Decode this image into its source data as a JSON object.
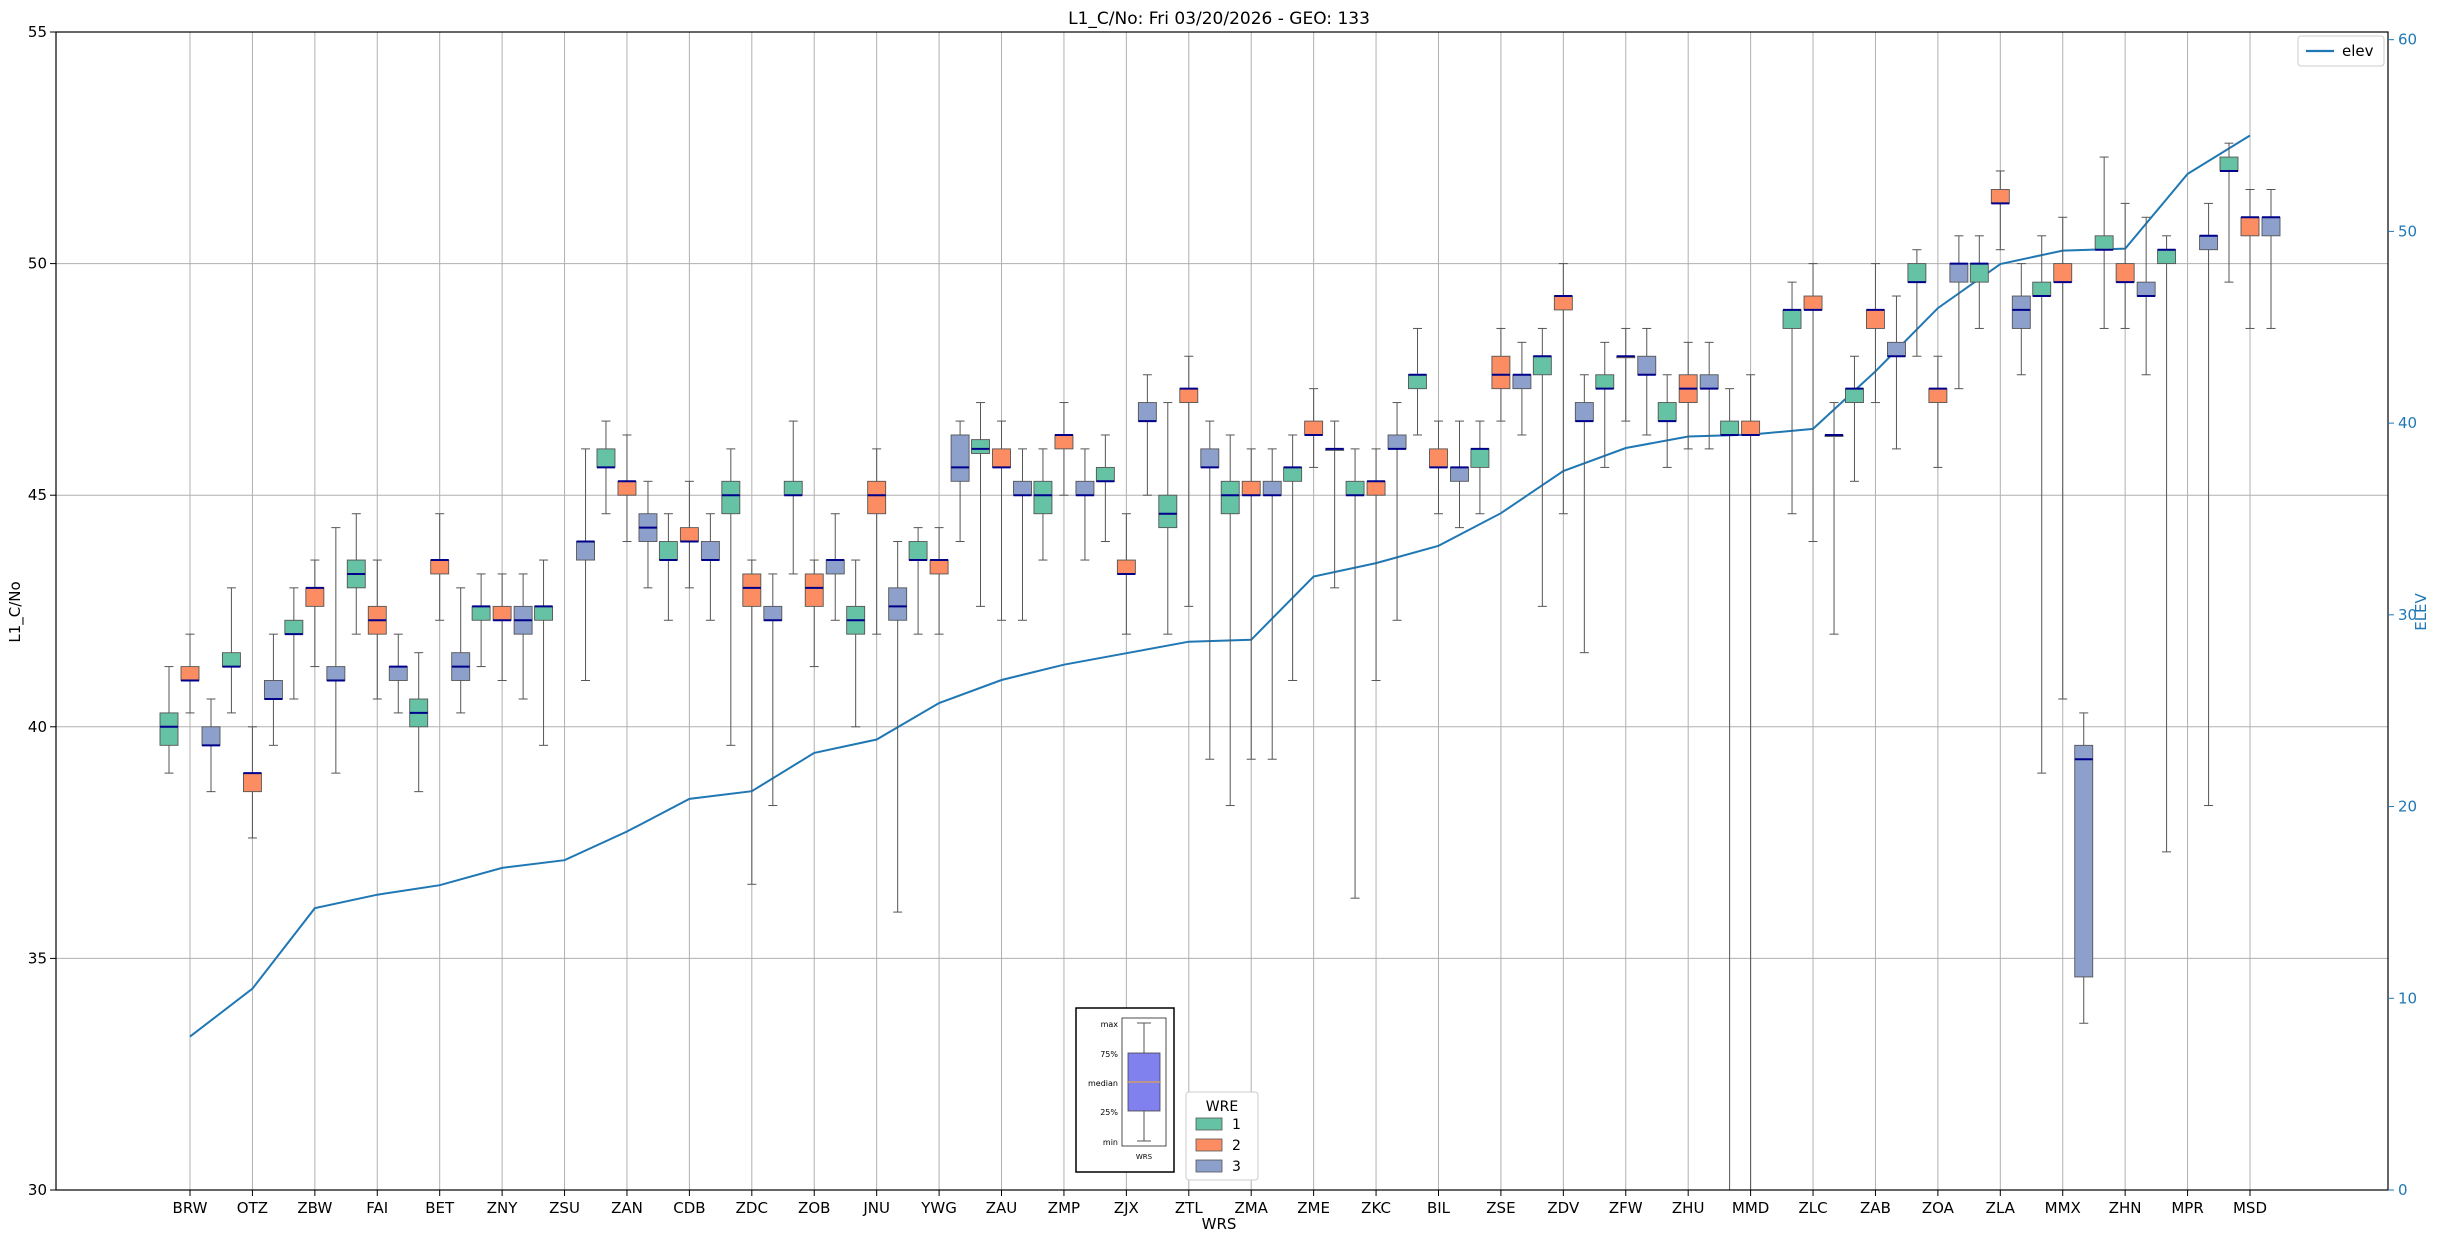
{
  "chart_data": {
    "type": "box",
    "title": "L1_C/No: Fri 03/20/2026 - GEO: 133",
    "xlabel": "WRS",
    "ylabel": "L1_C/No",
    "y2label": "ELEV",
    "ylim": [
      30,
      55
    ],
    "y2lim": [
      0,
      60.4
    ],
    "yticks": [
      30,
      35,
      40,
      45,
      50,
      55
    ],
    "y2ticks": [
      0,
      10,
      20,
      30,
      40,
      50,
      60
    ],
    "grid": true,
    "categories": [
      "BRW",
      "OTZ",
      "ZBW",
      "FAI",
      "BET",
      "ZNY",
      "ZSU",
      "ZAN",
      "CDB",
      "ZDC",
      "ZOB",
      "JNU",
      "YWG",
      "ZAU",
      "ZMP",
      "ZJX",
      "ZTL",
      "ZMA",
      "ZME",
      "ZKC",
      "BIL",
      "ZSE",
      "ZDV",
      "ZFW",
      "ZHU",
      "MMD",
      "ZLC",
      "ZAB",
      "ZOA",
      "ZLA",
      "MMX",
      "ZHN",
      "MPR",
      "MSD"
    ],
    "series_colors": {
      "1": "#66c2a5",
      "2": "#fc8d62",
      "3": "#8da0cb"
    },
    "median_color": "#00008b",
    "line_color": "#1f77b4",
    "legend": {
      "title": "WRE",
      "entries": [
        "1",
        "2",
        "3"
      ],
      "placement": "bottom-center"
    },
    "line_legend": {
      "label": "elev",
      "placement": "top-right"
    },
    "line_series": {
      "name": "elev",
      "values": [
        8.0,
        10.5,
        14.7,
        15.4,
        15.9,
        16.8,
        17.2,
        18.7,
        20.4,
        20.8,
        22.8,
        23.5,
        25.4,
        26.6,
        27.4,
        28.0,
        28.6,
        28.7,
        32.0,
        32.7,
        33.6,
        35.3,
        37.5,
        38.7,
        39.3,
        39.4,
        39.7,
        42.7,
        46.0,
        48.3,
        49.0,
        49.1,
        53.0,
        55.0
      ]
    },
    "boxes": [
      {
        "cat": "BRW",
        "wre": "1",
        "min": 39.0,
        "q1": 39.6,
        "median": 40.0,
        "q3": 40.3,
        "max": 41.3
      },
      {
        "cat": "BRW",
        "wre": "2",
        "min": 40.3,
        "q1": 41.0,
        "median": 41.0,
        "q3": 41.3,
        "max": 42.0
      },
      {
        "cat": "BRW",
        "wre": "3",
        "min": 38.6,
        "q1": 39.6,
        "median": 39.6,
        "q3": 40.0,
        "max": 40.6
      },
      {
        "cat": "OTZ",
        "wre": "1",
        "min": 40.3,
        "q1": 41.3,
        "median": 41.3,
        "q3": 41.6,
        "max": 43.0
      },
      {
        "cat": "OTZ",
        "wre": "2",
        "min": 37.6,
        "q1": 38.6,
        "median": 39.0,
        "q3": 39.0,
        "max": 40.0
      },
      {
        "cat": "OTZ",
        "wre": "3",
        "min": 39.6,
        "q1": 40.6,
        "median": 40.6,
        "q3": 41.0,
        "max": 42.0
      },
      {
        "cat": "ZBW",
        "wre": "1",
        "min": 40.6,
        "q1": 42.0,
        "median": 42.0,
        "q3": 42.3,
        "max": 43.0
      },
      {
        "cat": "ZBW",
        "wre": "2",
        "min": 41.3,
        "q1": 42.6,
        "median": 43.0,
        "q3": 43.0,
        "max": 43.6
      },
      {
        "cat": "ZBW",
        "wre": "3",
        "min": 39.0,
        "q1": 41.0,
        "median": 41.0,
        "q3": 41.3,
        "max": 44.3
      },
      {
        "cat": "FAI",
        "wre": "1",
        "min": 42.0,
        "q1": 43.0,
        "median": 43.3,
        "q3": 43.6,
        "max": 44.6
      },
      {
        "cat": "FAI",
        "wre": "2",
        "min": 40.6,
        "q1": 42.0,
        "median": 42.3,
        "q3": 42.6,
        "max": 43.6
      },
      {
        "cat": "FAI",
        "wre": "3",
        "min": 40.3,
        "q1": 41.0,
        "median": 41.3,
        "q3": 41.3,
        "max": 42.0
      },
      {
        "cat": "BET",
        "wre": "1",
        "min": 38.6,
        "q1": 40.0,
        "median": 40.3,
        "q3": 40.6,
        "max": 41.6
      },
      {
        "cat": "BET",
        "wre": "2",
        "min": 42.3,
        "q1": 43.3,
        "median": 43.6,
        "q3": 43.6,
        "max": 44.6
      },
      {
        "cat": "BET",
        "wre": "3",
        "min": 40.3,
        "q1": 41.0,
        "median": 41.3,
        "q3": 41.6,
        "max": 43.0
      },
      {
        "cat": "ZNY",
        "wre": "1",
        "min": 41.3,
        "q1": 42.3,
        "median": 42.6,
        "q3": 42.6,
        "max": 43.3
      },
      {
        "cat": "ZNY",
        "wre": "2",
        "min": 41.0,
        "q1": 42.3,
        "median": 42.3,
        "q3": 42.6,
        "max": 43.3
      },
      {
        "cat": "ZNY",
        "wre": "3",
        "min": 40.6,
        "q1": 42.0,
        "median": 42.3,
        "q3": 42.6,
        "max": 43.3
      },
      {
        "cat": "ZSU",
        "wre": "1",
        "min": 39.6,
        "q1": 42.3,
        "median": 42.6,
        "q3": 42.6,
        "max": 43.6
      },
      {
        "cat": "ZSU",
        "wre": "3",
        "min": 41.0,
        "q1": 43.6,
        "median": 44.0,
        "q3": 44.0,
        "max": 46.0
      },
      {
        "cat": "ZAN",
        "wre": "1",
        "min": 44.6,
        "q1": 45.6,
        "median": 45.6,
        "q3": 46.0,
        "max": 46.6
      },
      {
        "cat": "ZAN",
        "wre": "2",
        "min": 44.0,
        "q1": 45.0,
        "median": 45.3,
        "q3": 45.3,
        "max": 46.3
      },
      {
        "cat": "ZAN",
        "wre": "3",
        "min": 43.0,
        "q1": 44.0,
        "median": 44.3,
        "q3": 44.6,
        "max": 45.3
      },
      {
        "cat": "CDB",
        "wre": "1",
        "min": 42.3,
        "q1": 43.6,
        "median": 43.6,
        "q3": 44.0,
        "max": 44.6
      },
      {
        "cat": "CDB",
        "wre": "2",
        "min": 43.0,
        "q1": 44.0,
        "median": 44.0,
        "q3": 44.3,
        "max": 45.3
      },
      {
        "cat": "CDB",
        "wre": "3",
        "min": 42.3,
        "q1": 43.6,
        "median": 43.6,
        "q3": 44.0,
        "max": 44.6
      },
      {
        "cat": "ZDC",
        "wre": "1",
        "min": 39.6,
        "q1": 44.6,
        "median": 45.0,
        "q3": 45.3,
        "max": 46.0
      },
      {
        "cat": "ZDC",
        "wre": "2",
        "min": 36.6,
        "q1": 42.6,
        "median": 43.0,
        "q3": 43.3,
        "max": 43.6
      },
      {
        "cat": "ZDC",
        "wre": "3",
        "min": 38.3,
        "q1": 42.3,
        "median": 42.3,
        "q3": 42.6,
        "max": 43.3
      },
      {
        "cat": "ZOB",
        "wre": "1",
        "min": 43.3,
        "q1": 45.0,
        "median": 45.0,
        "q3": 45.3,
        "max": 46.6
      },
      {
        "cat": "ZOB",
        "wre": "2",
        "min": 41.3,
        "q1": 42.6,
        "median": 43.0,
        "q3": 43.3,
        "max": 43.6
      },
      {
        "cat": "ZOB",
        "wre": "3",
        "min": 42.3,
        "q1": 43.3,
        "median": 43.6,
        "q3": 43.6,
        "max": 44.6
      },
      {
        "cat": "JNU",
        "wre": "1",
        "min": 40.0,
        "q1": 42.0,
        "median": 42.3,
        "q3": 42.6,
        "max": 43.6
      },
      {
        "cat": "JNU",
        "wre": "2",
        "min": 42.0,
        "q1": 44.6,
        "median": 45.0,
        "q3": 45.3,
        "max": 46.0
      },
      {
        "cat": "JNU",
        "wre": "3",
        "min": 36.0,
        "q1": 42.3,
        "median": 42.6,
        "q3": 43.0,
        "max": 44.0
      },
      {
        "cat": "YWG",
        "wre": "1",
        "min": 42.0,
        "q1": 43.6,
        "median": 43.6,
        "q3": 44.0,
        "max": 44.3
      },
      {
        "cat": "YWG",
        "wre": "2",
        "min": 42.0,
        "q1": 43.3,
        "median": 43.6,
        "q3": 43.6,
        "max": 44.3
      },
      {
        "cat": "YWG",
        "wre": "3",
        "min": 44.0,
        "q1": 45.3,
        "median": 45.6,
        "q3": 46.3,
        "max": 46.6
      },
      {
        "cat": "ZAU",
        "wre": "1",
        "min": 42.6,
        "q1": 45.9,
        "median": 46.0,
        "q3": 46.2,
        "max": 47.0
      },
      {
        "cat": "ZAU",
        "wre": "2",
        "min": 42.3,
        "q1": 45.6,
        "median": 45.6,
        "q3": 46.0,
        "max": 46.6
      },
      {
        "cat": "ZAU",
        "wre": "3",
        "min": 42.3,
        "q1": 45.0,
        "median": 45.0,
        "q3": 45.3,
        "max": 46.0
      },
      {
        "cat": "ZMP",
        "wre": "1",
        "min": 43.6,
        "q1": 44.6,
        "median": 45.0,
        "q3": 45.3,
        "max": 46.0
      },
      {
        "cat": "ZMP",
        "wre": "2",
        "min": 45.0,
        "q1": 46.0,
        "median": 46.3,
        "q3": 46.3,
        "max": 47.0
      },
      {
        "cat": "ZMP",
        "wre": "3",
        "min": 43.6,
        "q1": 45.0,
        "median": 45.0,
        "q3": 45.3,
        "max": 46.0
      },
      {
        "cat": "ZJX",
        "wre": "1",
        "min": 44.0,
        "q1": 45.3,
        "median": 45.3,
        "q3": 45.6,
        "max": 46.3
      },
      {
        "cat": "ZJX",
        "wre": "2",
        "min": 42.0,
        "q1": 43.3,
        "median": 43.3,
        "q3": 43.6,
        "max": 44.6
      },
      {
        "cat": "ZJX",
        "wre": "3",
        "min": 45.0,
        "q1": 46.6,
        "median": 46.6,
        "q3": 47.0,
        "max": 47.6
      },
      {
        "cat": "ZTL",
        "wre": "1",
        "min": 42.0,
        "q1": 44.3,
        "median": 44.6,
        "q3": 45.0,
        "max": 47.0
      },
      {
        "cat": "ZTL",
        "wre": "2",
        "min": 42.6,
        "q1": 47.0,
        "median": 47.3,
        "q3": 47.3,
        "max": 48.0
      },
      {
        "cat": "ZTL",
        "wre": "3",
        "min": 39.3,
        "q1": 45.6,
        "median": 45.6,
        "q3": 46.0,
        "max": 46.6
      },
      {
        "cat": "ZMA",
        "wre": "1",
        "min": 38.3,
        "q1": 44.6,
        "median": 45.0,
        "q3": 45.3,
        "max": 46.3
      },
      {
        "cat": "ZMA",
        "wre": "2",
        "min": 39.3,
        "q1": 45.0,
        "median": 45.0,
        "q3": 45.3,
        "max": 46.0
      },
      {
        "cat": "ZMA",
        "wre": "3",
        "min": 39.3,
        "q1": 45.0,
        "median": 45.0,
        "q3": 45.3,
        "max": 46.0
      },
      {
        "cat": "ZME",
        "wre": "1",
        "min": 41.0,
        "q1": 45.3,
        "median": 45.6,
        "q3": 45.6,
        "max": 46.3
      },
      {
        "cat": "ZME",
        "wre": "2",
        "min": 45.6,
        "q1": 46.3,
        "median": 46.3,
        "q3": 46.6,
        "max": 47.3
      },
      {
        "cat": "ZME",
        "wre": "3",
        "min": 43.0,
        "q1": 46.0,
        "median": 46.0,
        "q3": 46.0,
        "max": 46.6
      },
      {
        "cat": "ZKC",
        "wre": "1",
        "min": 36.3,
        "q1": 45.0,
        "median": 45.0,
        "q3": 45.3,
        "max": 46.0
      },
      {
        "cat": "ZKC",
        "wre": "2",
        "min": 41.0,
        "q1": 45.0,
        "median": 45.3,
        "q3": 45.3,
        "max": 46.0
      },
      {
        "cat": "ZKC",
        "wre": "3",
        "min": 42.3,
        "q1": 46.0,
        "median": 46.0,
        "q3": 46.3,
        "max": 47.0
      },
      {
        "cat": "BIL",
        "wre": "1",
        "min": 46.3,
        "q1": 47.3,
        "median": 47.6,
        "q3": 47.6,
        "max": 48.6
      },
      {
        "cat": "BIL",
        "wre": "2",
        "min": 44.6,
        "q1": 45.6,
        "median": 45.6,
        "q3": 46.0,
        "max": 46.6
      },
      {
        "cat": "BIL",
        "wre": "3",
        "min": 44.3,
        "q1": 45.3,
        "median": 45.6,
        "q3": 45.6,
        "max": 46.6
      },
      {
        "cat": "ZSE",
        "wre": "1",
        "min": 44.6,
        "q1": 45.6,
        "median": 46.0,
        "q3": 46.0,
        "max": 46.6
      },
      {
        "cat": "ZSE",
        "wre": "2",
        "min": 46.6,
        "q1": 47.3,
        "median": 47.6,
        "q3": 48.0,
        "max": 48.6
      },
      {
        "cat": "ZSE",
        "wre": "3",
        "min": 46.3,
        "q1": 47.3,
        "median": 47.6,
        "q3": 47.6,
        "max": 48.3
      },
      {
        "cat": "ZDV",
        "wre": "1",
        "min": 42.6,
        "q1": 47.6,
        "median": 48.0,
        "q3": 48.0,
        "max": 48.6
      },
      {
        "cat": "ZDV",
        "wre": "2",
        "min": 44.6,
        "q1": 49.0,
        "median": 49.3,
        "q3": 49.3,
        "max": 50.0
      },
      {
        "cat": "ZDV",
        "wre": "3",
        "min": 41.6,
        "q1": 46.6,
        "median": 46.6,
        "q3": 47.0,
        "max": 47.6
      },
      {
        "cat": "ZFW",
        "wre": "1",
        "min": 45.6,
        "q1": 47.3,
        "median": 47.3,
        "q3": 47.6,
        "max": 48.3
      },
      {
        "cat": "ZFW",
        "wre": "2",
        "min": 46.6,
        "q1": 48.0,
        "median": 48.0,
        "q3": 48.0,
        "max": 48.6
      },
      {
        "cat": "ZFW",
        "wre": "3",
        "min": 46.3,
        "q1": 47.6,
        "median": 47.6,
        "q3": 48.0,
        "max": 48.6
      },
      {
        "cat": "ZHU",
        "wre": "1",
        "min": 45.6,
        "q1": 46.6,
        "median": 46.6,
        "q3": 47.0,
        "max": 47.6
      },
      {
        "cat": "ZHU",
        "wre": "2",
        "min": 46.0,
        "q1": 47.0,
        "median": 47.3,
        "q3": 47.6,
        "max": 48.3
      },
      {
        "cat": "ZHU",
        "wre": "3",
        "min": 46.0,
        "q1": 47.3,
        "median": 47.3,
        "q3": 47.6,
        "max": 48.3
      },
      {
        "cat": "MMD",
        "wre": "1",
        "min": 30.0,
        "q1": 46.3,
        "median": 46.3,
        "q3": 46.6,
        "max": 47.3
      },
      {
        "cat": "MMD",
        "wre": "2",
        "min": 30.0,
        "q1": 46.3,
        "median": 46.3,
        "q3": 46.6,
        "max": 47.6
      },
      {
        "cat": "ZLC",
        "wre": "1",
        "min": 44.6,
        "q1": 48.6,
        "median": 49.0,
        "q3": 49.0,
        "max": 49.6
      },
      {
        "cat": "ZLC",
        "wre": "2",
        "min": 44.0,
        "q1": 49.0,
        "median": 49.0,
        "q3": 49.3,
        "max": 50.0
      },
      {
        "cat": "ZLC",
        "wre": "3",
        "min": 42.0,
        "q1": 46.3,
        "median": 46.3,
        "q3": 46.3,
        "max": 47.0
      },
      {
        "cat": "ZAB",
        "wre": "1",
        "min": 45.3,
        "q1": 47.0,
        "median": 47.3,
        "q3": 47.3,
        "max": 48.0
      },
      {
        "cat": "ZAB",
        "wre": "2",
        "min": 47.0,
        "q1": 48.6,
        "median": 49.0,
        "q3": 49.0,
        "max": 50.0
      },
      {
        "cat": "ZAB",
        "wre": "3",
        "min": 46.0,
        "q1": 48.0,
        "median": 48.0,
        "q3": 48.3,
        "max": 49.3
      },
      {
        "cat": "ZOA",
        "wre": "1",
        "min": 48.0,
        "q1": 49.6,
        "median": 49.6,
        "q3": 50.0,
        "max": 50.3
      },
      {
        "cat": "ZOA",
        "wre": "2",
        "min": 45.6,
        "q1": 47.0,
        "median": 47.3,
        "q3": 47.3,
        "max": 48.0
      },
      {
        "cat": "ZOA",
        "wre": "3",
        "min": 47.3,
        "q1": 49.6,
        "median": 50.0,
        "q3": 50.0,
        "max": 50.6
      },
      {
        "cat": "ZLA",
        "wre": "1",
        "min": 48.6,
        "q1": 49.6,
        "median": 50.0,
        "q3": 50.0,
        "max": 50.6
      },
      {
        "cat": "ZLA",
        "wre": "2",
        "min": 50.3,
        "q1": 51.3,
        "median": 51.3,
        "q3": 51.6,
        "max": 52.0
      },
      {
        "cat": "ZLA",
        "wre": "3",
        "min": 47.6,
        "q1": 48.6,
        "median": 49.0,
        "q3": 49.3,
        "max": 50.0
      },
      {
        "cat": "MMX",
        "wre": "1",
        "min": 39.0,
        "q1": 49.3,
        "median": 49.3,
        "q3": 49.6,
        "max": 50.6
      },
      {
        "cat": "MMX",
        "wre": "2",
        "min": 40.6,
        "q1": 49.6,
        "median": 49.6,
        "q3": 50.0,
        "max": 51.0
      },
      {
        "cat": "MMX",
        "wre": "3",
        "min": 33.6,
        "q1": 34.6,
        "median": 39.3,
        "q3": 39.6,
        "max": 40.3
      },
      {
        "cat": "ZHN",
        "wre": "1",
        "min": 48.6,
        "q1": 50.3,
        "median": 50.3,
        "q3": 50.6,
        "max": 52.3
      },
      {
        "cat": "ZHN",
        "wre": "2",
        "min": 48.6,
        "q1": 49.6,
        "median": 49.6,
        "q3": 50.0,
        "max": 51.3
      },
      {
        "cat": "ZHN",
        "wre": "3",
        "min": 47.6,
        "q1": 49.3,
        "median": 49.3,
        "q3": 49.6,
        "max": 51.0
      },
      {
        "cat": "MPR",
        "wre": "1",
        "min": 37.3,
        "q1": 50.0,
        "median": 50.3,
        "q3": 50.3,
        "max": 50.6
      },
      {
        "cat": "MPR",
        "wre": "3",
        "min": 38.3,
        "q1": 50.3,
        "median": 50.6,
        "q3": 50.6,
        "max": 51.3
      },
      {
        "cat": "MSD",
        "wre": "1",
        "min": 49.6,
        "q1": 52.0,
        "median": 52.0,
        "q3": 52.3,
        "max": 52.6
      },
      {
        "cat": "MSD",
        "wre": "2",
        "min": 48.6,
        "q1": 50.6,
        "median": 51.0,
        "q3": 51.0,
        "max": 51.6
      },
      {
        "cat": "MSD",
        "wre": "3",
        "min": 48.6,
        "q1": 50.6,
        "median": 51.0,
        "q3": 51.0,
        "max": 51.6
      }
    ],
    "inset_key": {
      "labels": [
        "max",
        "75%",
        "median",
        "25%",
        "min"
      ],
      "xlabel": "WRS"
    }
  }
}
